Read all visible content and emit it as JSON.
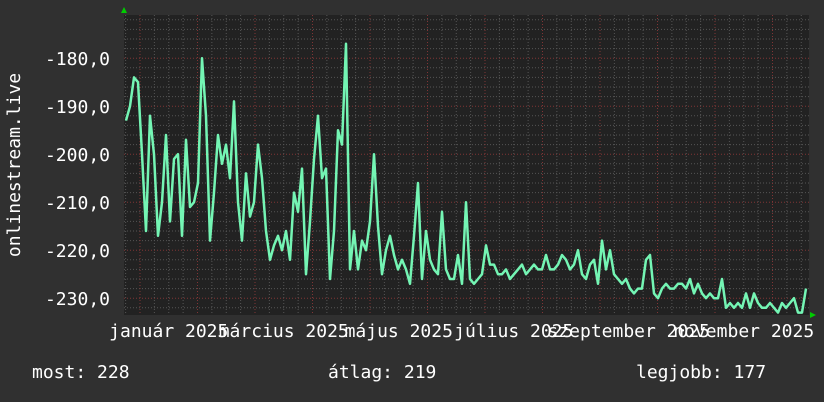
{
  "chart_data": {
    "type": "line",
    "title": "",
    "ylabel": "onlinestream.live",
    "xlabel": "",
    "ylim": [
      -233.5,
      -171
    ],
    "y_ticks": [
      "-180,0",
      "-190,0",
      "-200,0",
      "-210,0",
      "-220,0",
      "-230,0"
    ],
    "y_tick_values": [
      -180,
      -190,
      -200,
      -210,
      -220,
      -230
    ],
    "x_ticks": [
      "január 2025",
      "március 2025",
      "május 2025",
      "július 2025",
      "szeptember 2025",
      "november 2025"
    ],
    "grid": true,
    "colors": {
      "line": "#74f5b4",
      "plot_bg": "#222222",
      "canvas_bg": "#303030",
      "minor_grid": "#555555",
      "major_grid": "#803535",
      "arrow": "#00cc00"
    },
    "series": [
      {
        "values": [
          -193,
          -190,
          -184,
          -185,
          -200,
          -216,
          -192,
          -200,
          -217,
          -210,
          -196,
          -214,
          -201,
          -200,
          -217,
          -197,
          -211,
          -210,
          -206,
          -180,
          -192,
          -218,
          -208,
          -196,
          -202,
          -198,
          -205,
          -189,
          -210,
          -218,
          -204,
          -213,
          -210,
          -198,
          -205,
          -216,
          -222,
          -219,
          -217,
          -220,
          -216,
          -222,
          -208,
          -212,
          -203,
          -225,
          -214,
          -201,
          -192,
          -205,
          -203,
          -226,
          -216,
          -195,
          -198,
          -177,
          -224,
          -216,
          -224,
          -218,
          -220,
          -214,
          -200,
          -215,
          -225,
          -220,
          -217,
          -221,
          -224,
          -222,
          -224,
          -227,
          -217,
          -206,
          -226,
          -216,
          -222,
          -224,
          -225,
          -212,
          -224,
          -226,
          -226,
          -221,
          -227,
          -210,
          -226,
          -227,
          -226,
          -225,
          -219,
          -223,
          -223,
          -225,
          -225,
          -224,
          -226,
          -225,
          -224,
          -223,
          -225,
          -224,
          -223,
          -224,
          -224,
          -221,
          -224,
          -224,
          -223,
          -221,
          -222,
          -224,
          -223,
          -220,
          -225,
          -226,
          -223,
          -222,
          -227,
          -218,
          -224,
          -220,
          -225,
          -226,
          -227,
          -226,
          -228,
          -229,
          -228,
          -228,
          -222,
          -221,
          -229,
          -230,
          -228,
          -227,
          -228,
          -228,
          -227,
          -227,
          -228,
          -226,
          -229,
          -227,
          -229,
          -230,
          -229,
          -230,
          -230,
          -226,
          -232,
          -231,
          -232,
          -231,
          -232,
          -229,
          -232,
          -229,
          -231,
          -232,
          -232,
          -231,
          -232,
          -233,
          -231,
          -232,
          -231,
          -230,
          -233,
          -233,
          -228
        ]
      }
    ]
  },
  "stats": {
    "current": "most: 228",
    "average": "átlag: 219",
    "best": "legjobb: 177"
  }
}
